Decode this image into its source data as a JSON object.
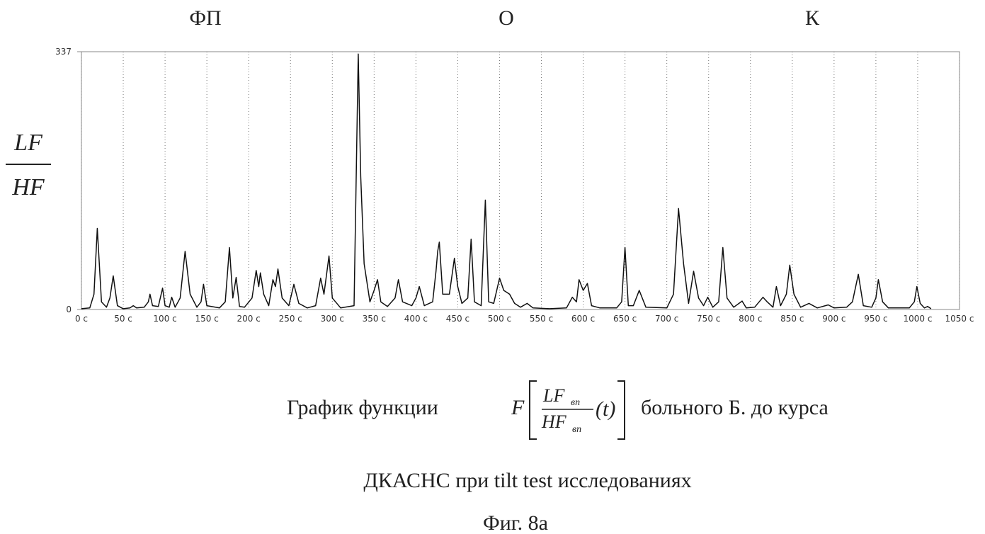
{
  "chart_data": {
    "type": "line",
    "annotations": [
      "ФП",
      "О",
      "К"
    ],
    "ylabel": {
      "numerator": "LF",
      "denominator": "HF"
    },
    "x": [
      0,
      10,
      15,
      19,
      24,
      30,
      34,
      38,
      43,
      50,
      58,
      62,
      66,
      75,
      80,
      82,
      85,
      92,
      97,
      100,
      105,
      108,
      112,
      118,
      124,
      130,
      138,
      143,
      146,
      150,
      165,
      172,
      177,
      181,
      185,
      189,
      195,
      204,
      209,
      212,
      214,
      218,
      224,
      229,
      232,
      235,
      240,
      248,
      254,
      260,
      270,
      280,
      286,
      290,
      296,
      300,
      310,
      326,
      331,
      334,
      338,
      345,
      350,
      354,
      358,
      366,
      375,
      379,
      384,
      395,
      400,
      404,
      410,
      420,
      424,
      426,
      428,
      432,
      440,
      446,
      450,
      455,
      462,
      466,
      470,
      478,
      483,
      487,
      493,
      500,
      505,
      512,
      518,
      525,
      533,
      540,
      560,
      580,
      587,
      592,
      595,
      600,
      605,
      610,
      620,
      640,
      646,
      650,
      654,
      660,
      667,
      675,
      700,
      708,
      714,
      720,
      726,
      732,
      738,
      744,
      749,
      755,
      762,
      767,
      772,
      780,
      790,
      795,
      805,
      815,
      820,
      827,
      831,
      836,
      843,
      847,
      852,
      860,
      870,
      880,
      893,
      900,
      915,
      922,
      929,
      935,
      945,
      950,
      953,
      958,
      965,
      990,
      996,
      999,
      1003,
      1008,
      1012,
      1016
    ],
    "values": [
      1,
      2,
      20,
      106,
      10,
      3,
      15,
      44,
      5,
      1,
      2,
      5,
      2,
      3,
      10,
      20,
      5,
      4,
      28,
      5,
      3,
      16,
      3,
      15,
      76,
      20,
      3,
      10,
      33,
      5,
      2,
      10,
      81,
      15,
      42,
      4,
      3,
      15,
      51,
      30,
      48,
      20,
      5,
      39,
      30,
      53,
      15,
      5,
      33,
      8,
      2,
      5,
      41,
      20,
      70,
      15,
      2,
      5,
      334,
      174,
      60,
      10,
      25,
      39,
      10,
      4,
      15,
      39,
      10,
      5,
      15,
      30,
      5,
      10,
      50,
      76,
      88,
      20,
      20,
      67,
      30,
      8,
      15,
      92,
      10,
      5,
      143,
      10,
      8,
      41,
      25,
      20,
      8,
      3,
      8,
      2,
      1,
      2,
      16,
      10,
      39,
      25,
      34,
      5,
      2,
      2,
      10,
      81,
      5,
      5,
      25,
      3,
      2,
      20,
      132,
      60,
      8,
      50,
      15,
      5,
      16,
      3,
      10,
      81,
      15,
      3,
      11,
      2,
      3,
      16,
      10,
      3,
      30,
      5,
      20,
      58,
      20,
      3,
      8,
      2,
      6,
      2,
      3,
      10,
      46,
      5,
      3,
      15,
      39,
      10,
      2,
      2,
      10,
      30,
      8,
      2,
      4,
      1
    ],
    "color": "#111111",
    "xlim": [
      0,
      1050
    ],
    "ylim": [
      0,
      337
    ],
    "xticks": [
      {
        "value": 0,
        "label": "0 c"
      },
      {
        "value": 50,
        "label": "50 c"
      },
      {
        "value": 100,
        "label": "100 c"
      },
      {
        "value": 150,
        "label": "150 c"
      },
      {
        "value": 200,
        "label": "200 c"
      },
      {
        "value": 250,
        "label": "250 c"
      },
      {
        "value": 300,
        "label": "300 c"
      },
      {
        "value": 350,
        "label": "350 c"
      },
      {
        "value": 400,
        "label": "400 c"
      },
      {
        "value": 450,
        "label": "450 c"
      },
      {
        "value": 500,
        "label": "500 c"
      },
      {
        "value": 550,
        "label": "550 c"
      },
      {
        "value": 600,
        "label": "600 c"
      },
      {
        "value": 650,
        "label": "650 c"
      },
      {
        "value": 700,
        "label": "700 c"
      },
      {
        "value": 750,
        "label": "750 c"
      },
      {
        "value": 800,
        "label": "800 c"
      },
      {
        "value": 850,
        "label": "850 c"
      },
      {
        "value": 900,
        "label": "900 c"
      },
      {
        "value": 950,
        "label": "950 c"
      },
      {
        "value": 1000,
        "label": "1000 c"
      },
      {
        "value": 1050,
        "label": "1050 c"
      }
    ],
    "yticks": [
      0,
      337
    ],
    "grid": true
  },
  "caption": {
    "prefix": "График функции",
    "F": "F",
    "num": "LF",
    "num_sub": "вп",
    "den": "HF",
    "den_sub": "вп",
    "arg": "(t)",
    "suffix": "больного Б. до курса",
    "line2": "ДКАСНС при tilt test исследованиях",
    "figure": "Фиг. 8а"
  }
}
